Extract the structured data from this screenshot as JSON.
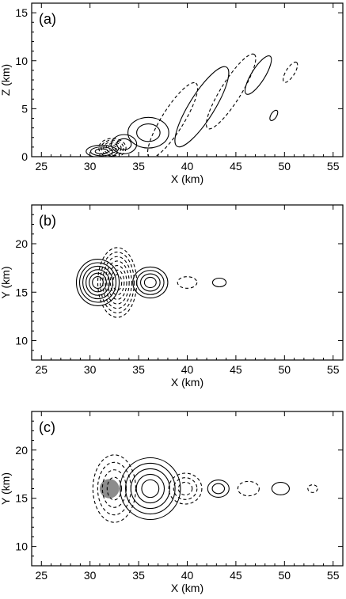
{
  "chart_data": [
    {
      "type": "contour",
      "panel_label": "(a)",
      "xlabel": "X (km)",
      "ylabel": "Z (km)",
      "xlim": [
        24,
        56
      ],
      "ylim": [
        0,
        16
      ],
      "xticks": [
        25,
        30,
        35,
        40,
        45,
        50,
        55
      ],
      "yticks": [
        0,
        5,
        10,
        15
      ],
      "contours": [
        {
          "cx": 31.2,
          "cy": 0.55,
          "rx": 1.6,
          "ry": 0.65,
          "angle": 0,
          "sign": 1,
          "levels": 3
        },
        {
          "cx": 32.3,
          "cy": 0.9,
          "rx": 1.4,
          "ry": 1.0,
          "angle": 0,
          "sign": -1,
          "levels": 5
        },
        {
          "cx": 33.5,
          "cy": 1.3,
          "rx": 1.3,
          "ry": 1.0,
          "angle": 0,
          "sign": 1,
          "levels": 2
        },
        {
          "cx": 36.0,
          "cy": 2.5,
          "rx": 2.1,
          "ry": 1.6,
          "angle": 0,
          "sign": 1,
          "levels": 2
        },
        {
          "cx": 38.5,
          "cy": 3.8,
          "rx": 4.5,
          "ry": 1.15,
          "angle": 58,
          "sign": -1,
          "levels": 1
        },
        {
          "cx": 41.5,
          "cy": 5.2,
          "rx": 4.8,
          "ry": 1.3,
          "angle": 58,
          "sign": 1,
          "levels": 1
        },
        {
          "cx": 44.5,
          "cy": 6.8,
          "rx": 4.5,
          "ry": 1.05,
          "angle": 58,
          "sign": -1,
          "levels": 1
        },
        {
          "cx": 47.3,
          "cy": 8.5,
          "rx": 2.3,
          "ry": 0.7,
          "angle": 58,
          "sign": 1,
          "levels": 1
        },
        {
          "cx": 48.9,
          "cy": 4.3,
          "rx": 0.6,
          "ry": 0.3,
          "angle": 58,
          "sign": 1,
          "levels": 1
        },
        {
          "cx": 50.6,
          "cy": 8.8,
          "rx": 1.2,
          "ry": 0.45,
          "angle": 58,
          "sign": -1,
          "levels": 1
        }
      ]
    },
    {
      "type": "contour",
      "panel_label": "(b)",
      "xlabel": "X (km)",
      "ylabel": "Y (km)",
      "xlim": [
        24,
        56
      ],
      "ylim": [
        8,
        24
      ],
      "xticks": [
        25,
        30,
        35,
        40,
        45,
        50,
        55
      ],
      "yticks": [
        10,
        15,
        20
      ],
      "contours": [
        {
          "cx": 30.8,
          "cy": 16.0,
          "rx": 2.2,
          "ry": 2.4,
          "angle": 0,
          "sign": 1,
          "levels": 6
        },
        {
          "cx": 32.8,
          "cy": 16.0,
          "rx": 2.0,
          "ry": 3.6,
          "angle": 0,
          "sign": -1,
          "levels": 7
        },
        {
          "cx": 36.2,
          "cy": 16.0,
          "rx": 1.8,
          "ry": 1.6,
          "angle": 0,
          "sign": 1,
          "levels": 4
        },
        {
          "cx": 40.0,
          "cy": 16.0,
          "rx": 1.0,
          "ry": 0.6,
          "angle": 0,
          "sign": -1,
          "levels": 1
        },
        {
          "cx": 43.3,
          "cy": 16.0,
          "rx": 0.7,
          "ry": 0.45,
          "angle": 0,
          "sign": 1,
          "levels": 1
        }
      ]
    },
    {
      "type": "contour",
      "panel_label": "(c)",
      "xlabel": "X (km)",
      "ylabel": "Y (km)",
      "xlim": [
        24,
        56
      ],
      "ylim": [
        8,
        24
      ],
      "xticks": [
        25,
        30,
        35,
        40,
        45,
        50,
        55
      ],
      "yticks": [
        10,
        15,
        20
      ],
      "shaded": {
        "cx": 32.0,
        "cy": 16.0,
        "rx": 1.0,
        "ry": 1.0
      },
      "contours": [
        {
          "cx": 32.5,
          "cy": 16.0,
          "rx": 2.2,
          "ry": 3.5,
          "angle": 0,
          "sign": -1,
          "levels": 4
        },
        {
          "cx": 36.2,
          "cy": 16.0,
          "rx": 3.1,
          "ry": 3.2,
          "angle": 0,
          "sign": 1,
          "levels": 5
        },
        {
          "cx": 39.8,
          "cy": 16.0,
          "rx": 1.7,
          "ry": 1.6,
          "angle": 0,
          "sign": -1,
          "levels": 3
        },
        {
          "cx": 43.2,
          "cy": 16.0,
          "rx": 1.1,
          "ry": 0.9,
          "angle": 0,
          "sign": 1,
          "levels": 2
        },
        {
          "cx": 46.3,
          "cy": 16.0,
          "rx": 1.1,
          "ry": 0.75,
          "angle": 0,
          "sign": -1,
          "levels": 1
        },
        {
          "cx": 49.6,
          "cy": 16.0,
          "rx": 0.9,
          "ry": 0.65,
          "angle": 0,
          "sign": 1,
          "levels": 1
        },
        {
          "cx": 52.9,
          "cy": 16.0,
          "rx": 0.5,
          "ry": 0.4,
          "angle": 0,
          "sign": -1,
          "levels": 1
        }
      ]
    }
  ]
}
